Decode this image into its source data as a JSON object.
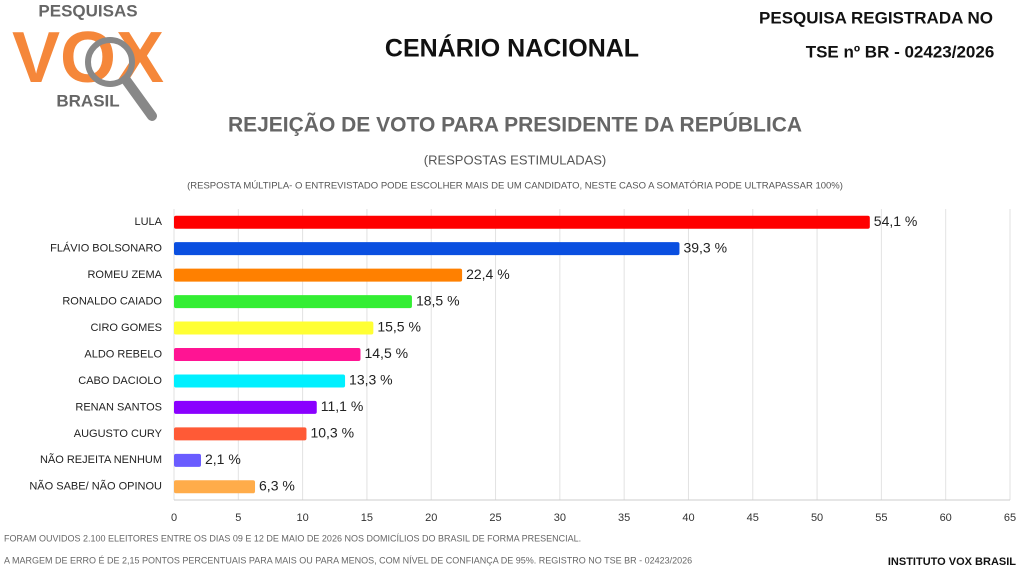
{
  "logo": {
    "top": "PESQUISAS",
    "main": "VOX",
    "bottom": "BRASIL"
  },
  "header": {
    "heading": "CENÁRIO NACIONAL",
    "registry_line1": "PESQUISA REGISTRADA NO",
    "registry_line2": "TSE nº BR - 02423/2026"
  },
  "chart_data": {
    "type": "bar",
    "orientation": "horizontal",
    "title": "REJEIÇÃO DE VOTO PARA PRESIDENTE DA REPÚBLICA",
    "subtitle": "(RESPOSTAS ESTIMULADAS)",
    "note": "(RESPOSTA MÚLTIPLA- O ENTREVISTADO PODE ESCOLHER MAIS DE UM CANDIDATO, NESTE CASO A SOMATÓRIA PODE ULTRAPASSAR 100%)",
    "categories": [
      "LULA",
      "FLÁVIO BOLSONARO",
      "ROMEU ZEMA",
      "RONALDO CAIADO",
      "CIRO GOMES",
      "ALDO REBELO",
      "CABO DACIOLO",
      "RENAN SANTOS",
      "AUGUSTO CURY",
      "NÃO REJEITA NENHUM",
      "NÃO SABE/ NÃO OPINOU"
    ],
    "values": [
      54.1,
      39.3,
      22.4,
      18.5,
      15.5,
      14.5,
      13.3,
      11.1,
      10.3,
      2.1,
      6.3
    ],
    "value_labels": [
      "54,1 %",
      "39,3 %",
      "22,4 %",
      "18,5 %",
      "15,5 %",
      "14,5 %",
      "13,3 %",
      "11,1 %",
      "10,3 %",
      "2,1 %",
      "6,3 %"
    ],
    "colors": [
      "#ff0000",
      "#0a4fe0",
      "#ff8000",
      "#33ee33",
      "#ffff33",
      "#ff1493",
      "#00f0ff",
      "#8a00ff",
      "#ff5a36",
      "#6a5cff",
      "#ffac4a"
    ],
    "xlim": [
      0,
      65
    ],
    "xticks": [
      0,
      5,
      10,
      15,
      20,
      25,
      30,
      35,
      40,
      45,
      50,
      55,
      60,
      65
    ],
    "grid": true
  },
  "footer": {
    "line1": "FORAM OUVIDOS 2.100 ELEITORES ENTRE OS DIAS 09 E 12 DE MAIO DE 2026 NOS DOMICÍLIOS DO BRASIL DE FORMA PRESENCIAL.",
    "line2": "A MARGEM DE ERRO É DE 2,15 PONTOS PERCENTUAIS PARA MAIS OU PARA MENOS, COM NÍVEL DE CONFIANÇA DE 95%. REGISTRO NO TSE BR - 02423/2026",
    "credit": "INSTITUTO VOX BRASIL"
  }
}
